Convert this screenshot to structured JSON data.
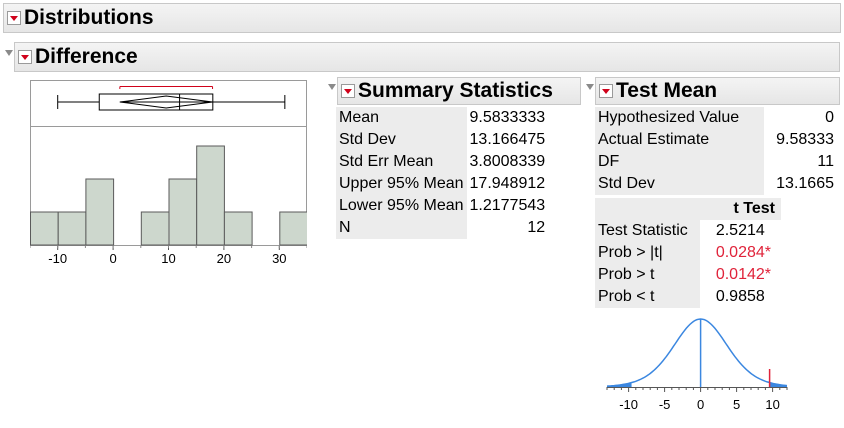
{
  "distributions": {
    "title": "Distributions"
  },
  "difference": {
    "title": "Difference"
  },
  "histogram": {
    "axis_ticks": [
      "-10",
      "0",
      "10",
      "20",
      "30"
    ]
  },
  "summary": {
    "title": "Summary Statistics",
    "rows": [
      {
        "label": "Mean",
        "value": "9.5833333"
      },
      {
        "label": "Std Dev",
        "value": "13.166475"
      },
      {
        "label": "Std Err Mean",
        "value": "3.8008339"
      },
      {
        "label": "Upper 95% Mean",
        "value": "17.948912"
      },
      {
        "label": "Lower 95% Mean",
        "value": "1.2177543"
      },
      {
        "label": "N",
        "value": "12"
      }
    ]
  },
  "testmean": {
    "title": "Test Mean",
    "rows": [
      {
        "label": "Hypothesized Value",
        "value": "0"
      },
      {
        "label": "Actual Estimate",
        "value": "9.58333"
      },
      {
        "label": "DF",
        "value": "11"
      },
      {
        "label": "Std Dev",
        "value": "13.1665"
      }
    ],
    "ttest_header": "t Test",
    "ttest_rows": [
      {
        "label": "Test Statistic",
        "value": "2.5214"
      },
      {
        "label": "Prob > |t|",
        "value": "0.0284*"
      },
      {
        "label": "Prob > t",
        "value": "0.0142*"
      },
      {
        "label": "Prob < t",
        "value": "0.9858"
      }
    ]
  },
  "density": {
    "axis_ticks": [
      "-10",
      "-5",
      "0",
      "5",
      "10"
    ]
  },
  "chart_data": [
    {
      "type": "bar",
      "bin_edges": [
        -15,
        -10,
        -5,
        0,
        5,
        10,
        15,
        20,
        25,
        30,
        35
      ],
      "counts": [
        1,
        1,
        2,
        0,
        1,
        2,
        3,
        1,
        0,
        1
      ],
      "xlim": [
        -15,
        35
      ],
      "box": {
        "min": -10,
        "q1": -2.5,
        "median": 12,
        "q3": 18,
        "max": 31,
        "mean": 9.58,
        "ci_lower": 1.22,
        "ci_upper": 17.95,
        "shortest_half": [
          5,
          24
        ]
      }
    },
    {
      "type": "line",
      "x_range": [
        -13,
        12
      ],
      "distribution": "t",
      "df": 11,
      "test_statistic_x": 9.58333,
      "xlim": [
        -13,
        12
      ]
    }
  ],
  "colors": {
    "bar_fill": "#cdd7cd",
    "curve": "#3b87e0",
    "significant_red": "#e0233a",
    "ci_bracket": "#d0021b"
  }
}
